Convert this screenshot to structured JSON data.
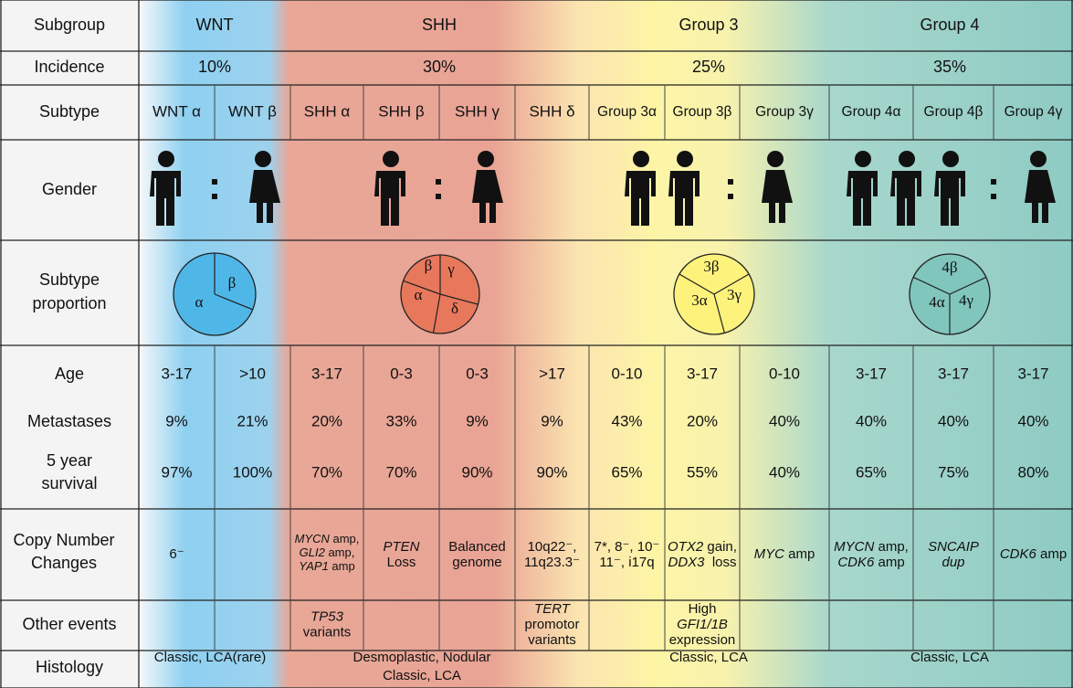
{
  "row_labels": [
    [
      "Subgroup"
    ],
    [
      "Incidence"
    ],
    [
      "Subtype"
    ],
    [
      "Gender"
    ],
    [
      "Subtype",
      "proportion"
    ],
    [
      "Age"
    ],
    [
      "Metastases"
    ],
    [
      "5 year",
      "survival"
    ],
    [
      "Copy Number",
      "Changes"
    ],
    [
      "Other events"
    ],
    [
      "Histology"
    ]
  ],
  "subgroups": [
    {
      "name": "WNT",
      "incidence": "10%",
      "pie_labels": [
        "α",
        "β"
      ],
      "histology": [
        "Classic, LCA(rare)"
      ]
    },
    {
      "name": "SHH",
      "incidence": "30%",
      "pie_labels": [
        "β",
        "γ",
        "α",
        "δ"
      ],
      "histology": [
        "Desmoplastic, Nodular",
        "Classic, LCA"
      ]
    },
    {
      "name": "Group 3",
      "incidence": "25%",
      "pie_labels": [
        "3β",
        "3α",
        "3γ"
      ],
      "histology": [
        "Classic, LCA"
      ]
    },
    {
      "name": "Group 4",
      "incidence": "35%",
      "pie_labels": [
        "4β",
        "4α",
        "4γ"
      ],
      "histology": [
        "Classic, LCA"
      ]
    }
  ],
  "subtypes": [
    {
      "name": "WNT α",
      "age": "3-17",
      "metastases": "9%",
      "survival": "97%",
      "copy_number": [
        [
          {
            "t": "6⁻"
          }
        ]
      ],
      "other_events": []
    },
    {
      "name": "WNT β",
      "age": ">10",
      "metastases": "21%",
      "survival": "100%",
      "copy_number": [],
      "other_events": []
    },
    {
      "name": "SHH α",
      "age": "3-17",
      "metastases": "20%",
      "survival": "70%",
      "copy_number": [
        [
          {
            "i": "MYCN"
          },
          {
            "t": " amp,"
          }
        ],
        [
          {
            "i": "GLI2"
          },
          {
            "t": " amp,"
          }
        ],
        [
          {
            "i": "YAP1"
          },
          {
            "t": " amp"
          }
        ]
      ],
      "other_events": [
        [
          {
            "i": "TP53"
          }
        ],
        [
          {
            "t": "variants"
          }
        ]
      ]
    },
    {
      "name": "SHH β",
      "age": "0-3",
      "metastases": "33%",
      "survival": "70%",
      "copy_number": [
        [
          {
            "i": "PTEN"
          }
        ],
        [
          {
            "t": "Loss"
          }
        ]
      ],
      "other_events": []
    },
    {
      "name": "SHH γ",
      "age": "0-3",
      "metastases": "9%",
      "survival": "90%",
      "copy_number": [
        [
          {
            "t": "Balanced"
          }
        ],
        [
          {
            "t": "genome"
          }
        ]
      ],
      "other_events": []
    },
    {
      "name": "SHH δ",
      "age": ">17",
      "metastases": "9%",
      "survival": "90%",
      "copy_number": [
        [
          {
            "t": "10q22⁻,"
          }
        ],
        [
          {
            "t": "11q23.3⁻"
          }
        ]
      ],
      "other_events": [
        [
          {
            "i": "TERT"
          }
        ],
        [
          {
            "t": "promotor"
          }
        ],
        [
          {
            "t": "variants"
          }
        ]
      ]
    },
    {
      "name": "Group 3α",
      "age": "0-10",
      "metastases": "43%",
      "survival": "65%",
      "copy_number": [
        [
          {
            "t": "7*, 8⁻, 10⁻"
          }
        ],
        [
          {
            "t": "11⁻, i17q"
          }
        ]
      ],
      "other_events": []
    },
    {
      "name": "Group 3β",
      "age": "3-17",
      "metastases": "20%",
      "survival": "55%",
      "copy_number": [
        [
          {
            "i": "OTX2"
          },
          {
            "t": " gain,"
          }
        ],
        [
          {
            "i": "DDX3"
          },
          {
            "t": "  loss"
          }
        ]
      ],
      "other_events": [
        [
          {
            "t": "High"
          }
        ],
        [
          {
            "i": "GFI1/1B"
          }
        ],
        [
          {
            "t": "expression"
          }
        ]
      ]
    },
    {
      "name": "Group 3γ",
      "age": "0-10",
      "metastases": "40%",
      "survival": "40%",
      "copy_number": [
        [
          {
            "i": "MYC"
          },
          {
            "t": " amp"
          }
        ]
      ],
      "other_events": []
    },
    {
      "name": "Group 4α",
      "age": "3-17",
      "metastases": "40%",
      "survival": "65%",
      "copy_number": [
        [
          {
            "i": "MYCN"
          },
          {
            "t": " amp,"
          }
        ],
        [
          {
            "i": "CDK6"
          },
          {
            "t": " amp"
          }
        ]
      ],
      "other_events": []
    },
    {
      "name": "Group 4β",
      "age": "3-17",
      "metastases": "40%",
      "survival": "75%",
      "copy_number": [
        [
          {
            "i": "SNCAIP"
          }
        ],
        [
          {
            "i": "dup"
          }
        ]
      ],
      "other_events": []
    },
    {
      "name": "Group 4γ",
      "age": "3-17",
      "metastases": "40%",
      "survival": "80%",
      "copy_number": [
        [
          {
            "i": "CDK6"
          },
          {
            "t": " amp"
          }
        ]
      ],
      "other_events": []
    }
  ]
}
